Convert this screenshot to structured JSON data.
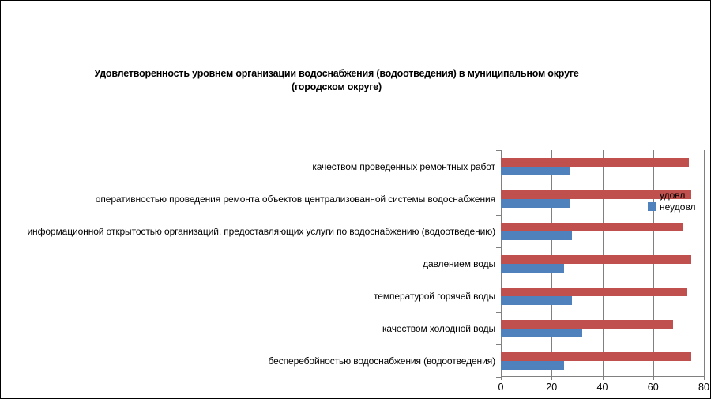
{
  "chart_data": {
    "type": "bar",
    "orientation": "horizontal",
    "title": "Удовлетворенность уровнем организации водоснабжения (водоотведения) в муниципальном округе (городском округе)",
    "title_lines": [
      "Удовлетворенность уровнем организации водоснабжения (водоотведения) в муниципальном округе",
      "(городском округе)"
    ],
    "categories": [
      "качеством проведенных ремонтных работ",
      "оперативностью проведения ремонта объектов централизованной системы водоснабжения",
      "информационной открытостью организаций, предоставляющих услуги по водоснабжению (водоотведению)",
      "давлением воды",
      "температурой горячей воды",
      "качеством холодной воды",
      "бесперебойностью водоснабжения (водоотведения)"
    ],
    "series": [
      {
        "name": "удовл",
        "color": "#C0504D",
        "values": [
          74,
          75,
          72,
          75,
          73,
          68,
          75
        ]
      },
      {
        "name": "неудовл",
        "color": "#4F81BD",
        "values": [
          27,
          27,
          28,
          25,
          28,
          32,
          25
        ]
      }
    ],
    "xlim": [
      0,
      80
    ],
    "x_ticks": [
      0,
      20,
      40,
      60,
      80
    ],
    "grid": "vertical-gridlines",
    "legend_position": "right-overlapping-plot",
    "colors": {
      "gridline": "#808080",
      "axis": "#808080",
      "text": "#000000",
      "background": "#FFFFFF",
      "border": "#000000"
    }
  }
}
